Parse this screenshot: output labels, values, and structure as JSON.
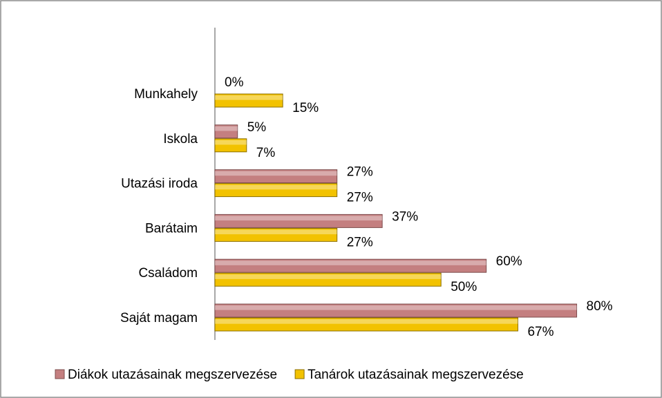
{
  "chart_data": {
    "type": "hbar",
    "categories": [
      "Munkahely",
      "Iskola",
      "Utazási iroda",
      "Barátaim",
      "Családom",
      "Saját magam"
    ],
    "series": [
      {
        "name": "Diákok utazásainak megszervezése",
        "color": "#c47f80",
        "values": [
          0,
          5,
          27,
          37,
          60,
          80
        ],
        "value_labels": [
          "0%",
          "5%",
          "27%",
          "37%",
          "60%",
          "80%"
        ]
      },
      {
        "name": "Tanárok utazásainak megszervezése",
        "color": "#f2c200",
        "values": [
          15,
          7,
          27,
          27,
          50,
          67
        ],
        "value_labels": [
          "15%",
          "7%",
          "27%",
          "27%",
          "50%",
          "67%"
        ]
      }
    ],
    "xlim": [
      0,
      90
    ],
    "legend": "bottom"
  }
}
